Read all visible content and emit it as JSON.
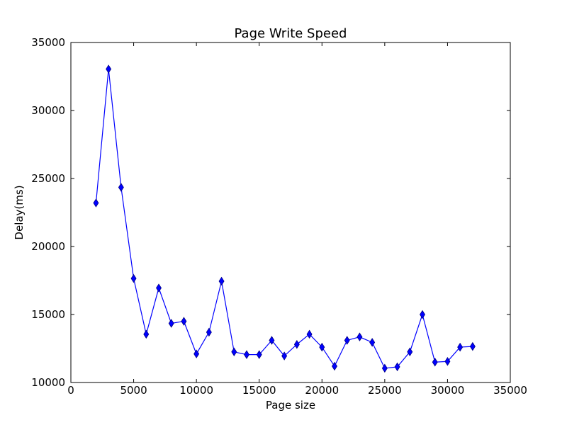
{
  "chart_data": {
    "type": "line",
    "title": "Page Write Speed",
    "xlabel": "Page size",
    "ylabel": "Delay(ms)",
    "xlim": [
      0,
      35000
    ],
    "ylim": [
      10000,
      35000
    ],
    "xticks": [
      0,
      5000,
      10000,
      15000,
      20000,
      25000,
      30000,
      35000
    ],
    "yticks": [
      10000,
      15000,
      20000,
      25000,
      30000,
      35000
    ],
    "grid": false,
    "line_color": "#0000ff",
    "marker": "diamond",
    "series": [
      {
        "x": [
          2000,
          3000,
          4000,
          5000,
          6000,
          7000,
          8000,
          9000,
          10000,
          11000,
          12000,
          13000,
          14000,
          15000,
          16000,
          17000,
          18000,
          19000,
          20000,
          21000,
          22000,
          23000,
          24000,
          25000,
          26000,
          27000,
          28000,
          29000,
          30000,
          31000,
          32000
        ],
        "values": [
          23200,
          33050,
          24350,
          17650,
          13550,
          16950,
          14350,
          14500,
          12100,
          13700,
          17450,
          12250,
          12050,
          12050,
          13100,
          11950,
          12800,
          13550,
          12600,
          11200,
          13100,
          13350,
          12950,
          11050,
          11150,
          12250,
          15000,
          11500,
          11550,
          12600,
          12650
        ]
      }
    ]
  }
}
